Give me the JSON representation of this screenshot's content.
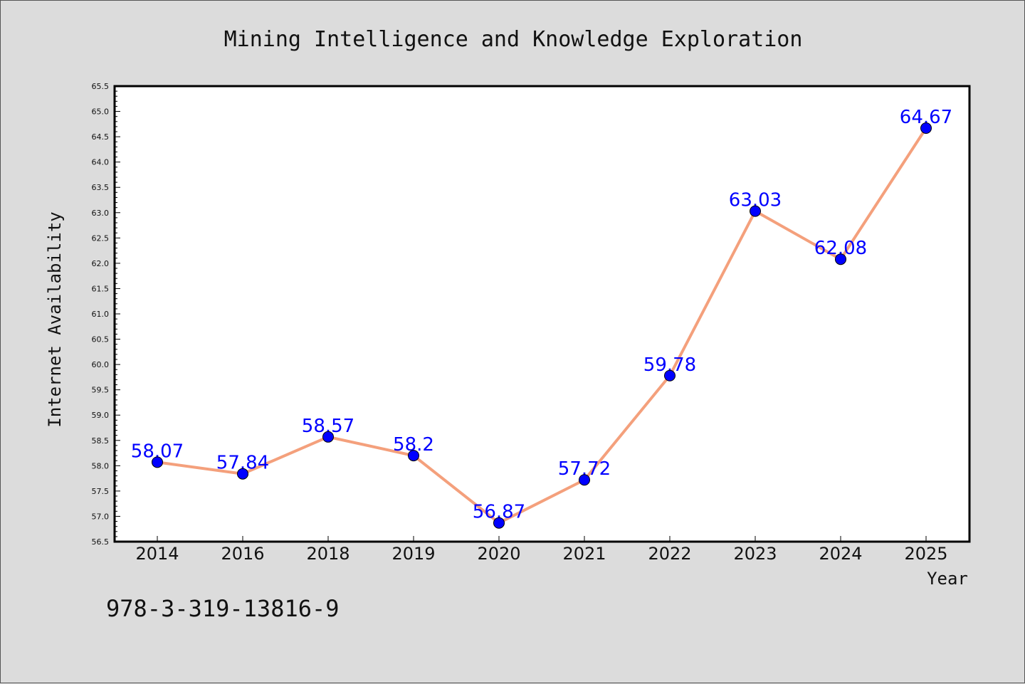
{
  "footer_text": "978-3-319-13816-9",
  "colors": {
    "line": "#f4a07c",
    "marker": "#0000ff",
    "data_label": "#0000ff",
    "plot_bg": "#ffffff",
    "page_bg": "#dcdcdc"
  },
  "chart_data": {
    "type": "line",
    "title": "Mining Intelligence and Knowledge Exploration",
    "xlabel": "Year",
    "ylabel": "Internet Availability",
    "categories": [
      "2014",
      "2016",
      "2018",
      "2019",
      "2020",
      "2021",
      "2022",
      "2023",
      "2024",
      "2025"
    ],
    "series": [
      {
        "values": [
          58.07,
          57.84,
          58.57,
          58.2,
          56.87,
          57.72,
          59.78,
          63.03,
          62.08,
          64.67
        ],
        "data_labels": [
          "58.07",
          "57.84",
          "58.57",
          "58.2",
          "56.87",
          "57.72",
          "59.78",
          "63.03",
          "62.08",
          "64.67"
        ]
      }
    ],
    "ylim": [
      56.5,
      65.5
    ],
    "yticks": [
      "56.5",
      "57.0",
      "57.5",
      "58.0",
      "58.5",
      "59.0",
      "59.5",
      "60.0",
      "60.5",
      "61.0",
      "61.5",
      "62.0",
      "62.5",
      "63.0",
      "63.5",
      "64.0",
      "64.5",
      "65.0",
      "65.5"
    ],
    "grid": false,
    "legend": "none"
  }
}
